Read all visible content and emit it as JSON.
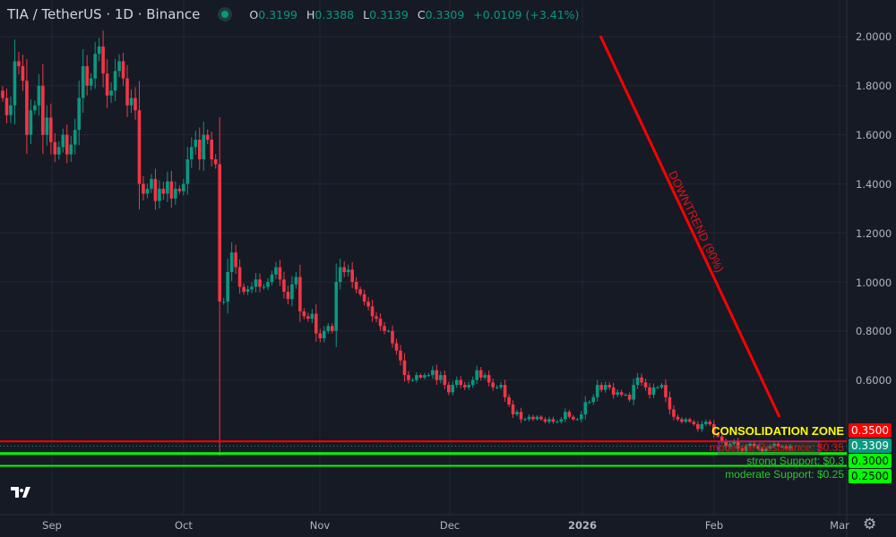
{
  "header": {
    "symbol": "TIA / TetherUS · 1D · Binance",
    "status_color": "#089981",
    "o_label": "O",
    "o": "0.3199",
    "h_label": "H",
    "h": "0.3388",
    "l_label": "L",
    "l": "0.3139",
    "c_label": "C",
    "c": "0.3309",
    "change": "+0.0109 (+3.41%)"
  },
  "price_axis": [
    "2.0000",
    "1.8000",
    "1.6000",
    "1.4000",
    "1.2000",
    "1.0000",
    "0.8000",
    "0.6000"
  ],
  "time_axis": [
    "Sep",
    "Oct",
    "Nov",
    "Dec",
    "2026",
    "Feb",
    "Mar"
  ],
  "labels": {
    "resistance_price": "0.3500",
    "current_price": "0.3309",
    "strong_support_price": "0.3000",
    "moderate_support_price": "0.2500",
    "consolidation": "CONSOLIDATION ZONE",
    "resistance_text": "moderate Resistance: $0.35",
    "strong_support_text": "strong Support: $0.3",
    "moderate_support_text": "moderate Support: $0.25",
    "downtrend": "DOWNTREND (90%)"
  },
  "colors": {
    "up": "#089981",
    "down": "#f23645",
    "resistance": "#ff0000",
    "support": "#00ff00",
    "consolidation_text": "#ffff00",
    "box": "#9c27b0",
    "background": "#161a25"
  },
  "icons": {
    "logo": "tradingview-logo",
    "settings": "gear-icon"
  },
  "chart_data": {
    "type": "candlestick",
    "ylim": [
      0.2,
      2.05
    ],
    "yticks": [
      2.0,
      1.8,
      1.6,
      1.4,
      1.2,
      1.0,
      0.8,
      0.6
    ],
    "xticks": [
      "Sep",
      "Oct",
      "Nov",
      "Dec",
      "2026",
      "Feb",
      "Mar"
    ],
    "closes": [
      1.75,
      1.68,
      1.72,
      1.9,
      1.88,
      1.82,
      1.6,
      1.7,
      1.72,
      1.8,
      1.6,
      1.67,
      1.57,
      1.52,
      1.55,
      1.6,
      1.52,
      1.56,
      1.62,
      1.75,
      1.88,
      1.8,
      1.83,
      1.93,
      1.96,
      1.85,
      1.76,
      1.78,
      1.86,
      1.9,
      1.83,
      1.72,
      1.75,
      1.7,
      1.4,
      1.36,
      1.38,
      1.42,
      1.33,
      1.38,
      1.36,
      1.41,
      1.34,
      1.38,
      1.37,
      1.4,
      1.5,
      1.55,
      1.58,
      1.5,
      1.6,
      1.58,
      1.5,
      1.48,
      0.92,
      0.92,
      1.04,
      1.12,
      1.06,
      0.98,
      0.96,
      0.97,
      0.98,
      1.01,
      0.98,
      0.98,
      1.0,
      1.03,
      1.06,
      1.01,
      0.96,
      0.93,
      0.99,
      1.02,
      0.88,
      0.86,
      0.85,
      0.87,
      0.79,
      0.77,
      0.8,
      0.82,
      0.8,
      1.0,
      1.06,
      1.04,
      1.05,
      1.0,
      0.97,
      0.95,
      0.92,
      0.9,
      0.86,
      0.85,
      0.82,
      0.8,
      0.8,
      0.75,
      0.72,
      0.68,
      0.62,
      0.6,
      0.6,
      0.62,
      0.61,
      0.62,
      0.62,
      0.64,
      0.6,
      0.62,
      0.58,
      0.55,
      0.58,
      0.6,
      0.58,
      0.57,
      0.58,
      0.6,
      0.64,
      0.61,
      0.62,
      0.59,
      0.57,
      0.57,
      0.58,
      0.53,
      0.5,
      0.46,
      0.47,
      0.44,
      0.44,
      0.45,
      0.44,
      0.45,
      0.44,
      0.43,
      0.44,
      0.43,
      0.43,
      0.44,
      0.47,
      0.45,
      0.44,
      0.44,
      0.46,
      0.51,
      0.51,
      0.53,
      0.58,
      0.56,
      0.58,
      0.57,
      0.54,
      0.55,
      0.54,
      0.54,
      0.52,
      0.58,
      0.61,
      0.59,
      0.57,
      0.54,
      0.57,
      0.57,
      0.58,
      0.53,
      0.48,
      0.45,
      0.44,
      0.43,
      0.44,
      0.43,
      0.42,
      0.4,
      0.42,
      0.43,
      0.42,
      0.38,
      0.37,
      0.35,
      0.33,
      0.34,
      0.35,
      0.32,
      0.31,
      0.33,
      0.34,
      0.33,
      0.32,
      0.31,
      0.32,
      0.33,
      0.34,
      0.33,
      0.33,
      0.32,
      0.3309
    ],
    "horizontal_levels": [
      {
        "label": "moderate Resistance",
        "value": 0.35
      },
      {
        "label": "strong Support",
        "value": 0.3
      },
      {
        "label": "moderate Support",
        "value": 0.25
      }
    ],
    "current_price": 0.3309
  }
}
